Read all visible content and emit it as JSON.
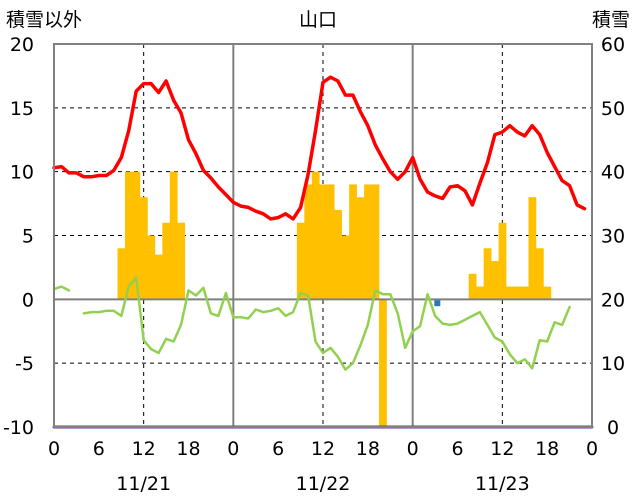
{
  "chart_data": {
    "type": "line",
    "title": "山口",
    "y_left_label": "積雪以外",
    "y_right_label": "積雪",
    "ylim_left": [
      -10,
      20
    ],
    "ylim_right": [
      0,
      60
    ],
    "y_left_ticks": [
      "20",
      "15",
      "10",
      "5",
      "0",
      "-5",
      "-10"
    ],
    "y_right_ticks": [
      "60",
      "50",
      "40",
      "30",
      "20",
      "10",
      "0"
    ],
    "x_hours_range": [
      0,
      72
    ],
    "x_tick_labels": [
      "0",
      "6",
      "12",
      "18",
      "0",
      "6",
      "12",
      "18",
      "0",
      "6",
      "12",
      "18",
      "0"
    ],
    "day_labels": [
      "11/21",
      "11/22",
      "11/23"
    ],
    "grid": true,
    "colors": {
      "temperature": "#ff0000",
      "snow_depth": "#ffc000",
      "other": "#92d050",
      "precip": "#2e75b6",
      "baseline": "#7030a0"
    },
    "series": [
      {
        "key": "temperature",
        "axis": "left",
        "kind": "line",
        "x": [
          0,
          1,
          2,
          3,
          4,
          5,
          6,
          7,
          8,
          9,
          10,
          11,
          12,
          13,
          14,
          15,
          16,
          17,
          18,
          19,
          20,
          21,
          22,
          23,
          24,
          25,
          26,
          27,
          28,
          29,
          30,
          31,
          32,
          33,
          34,
          35,
          36,
          37,
          38,
          39,
          40,
          41,
          42,
          43,
          44,
          45,
          46,
          47,
          48,
          49,
          50,
          51,
          52,
          53,
          54,
          55,
          56,
          57,
          58,
          59,
          60,
          61,
          62,
          63,
          64,
          65,
          66,
          67,
          68,
          69,
          70,
          71
        ],
        "values": [
          10.3,
          10.4,
          9.9,
          9.9,
          9.6,
          9.6,
          9.7,
          9.7,
          10.1,
          11.1,
          13.2,
          16.3,
          16.9,
          16.9,
          16.2,
          17.1,
          15.6,
          14.6,
          12.5,
          11.4,
          10.1,
          9.5,
          8.8,
          8.2,
          7.6,
          7.3,
          7.2,
          6.9,
          6.7,
          6.3,
          6.4,
          6.7,
          6.3,
          7.2,
          9.8,
          13.2,
          17.0,
          17.4,
          17.1,
          16.0,
          16.0,
          14.7,
          13.6,
          12.1,
          11.0,
          10.0,
          9.4,
          10.0,
          11.1,
          9.4,
          8.4,
          8.1,
          7.9,
          8.8,
          8.9,
          8.5,
          7.4,
          9.1,
          10.7,
          12.9,
          13.1,
          13.6,
          13.1,
          12.8,
          13.6,
          12.9,
          11.5,
          10.4,
          9.3,
          8.9,
          7.4,
          7.1
        ]
      },
      {
        "key": "snow_depth",
        "axis": "right",
        "kind": "bar",
        "x": [
          9,
          10,
          11,
          12,
          13,
          14,
          15,
          16,
          17,
          33,
          34,
          35,
          36,
          37,
          38,
          39,
          40,
          41,
          42,
          43,
          44,
          56,
          57,
          58,
          59,
          60,
          61,
          62,
          63,
          64,
          65,
          66
        ],
        "values": [
          28,
          40,
          40,
          36,
          30,
          27,
          32,
          40,
          32,
          32,
          38,
          40,
          38,
          38,
          34,
          30,
          38,
          36,
          38,
          38,
          0,
          24,
          22,
          28,
          26,
          32,
          22,
          22,
          22,
          36,
          28,
          22
        ]
      },
      {
        "key": "other",
        "axis": "left",
        "kind": "line",
        "segments": [
          {
            "x": [
              0,
              1,
              2
            ],
            "values": [
              0.8,
              1.0,
              0.7
            ]
          },
          {
            "x": [
              4,
              5,
              6,
              7,
              8,
              9,
              10,
              11,
              12,
              13,
              14,
              15,
              16,
              17,
              18,
              19,
              20,
              21,
              22,
              23,
              24,
              25,
              26,
              27,
              28,
              29,
              30,
              31,
              32,
              33,
              34,
              35,
              36,
              37,
              38,
              39,
              40,
              41,
              42,
              43,
              44,
              45,
              46,
              47,
              48,
              49,
              50,
              51,
              52,
              53,
              54,
              55,
              56,
              57,
              58,
              59,
              60,
              61,
              62,
              63,
              64,
              65,
              66,
              67,
              68,
              69,
              70
            ],
            "values": [
              -1.1,
              -1.0,
              -1.0,
              -0.9,
              -0.9,
              -1.3,
              1.0,
              1.7,
              -3.2,
              -3.9,
              -4.2,
              -3.1,
              -3.3,
              -2.0,
              0.7,
              0.3,
              0.9,
              -1.1,
              -1.3,
              0.5,
              -1.4,
              -1.4,
              -1.5,
              -0.8,
              -1.0,
              -0.9,
              -0.7,
              -1.3,
              -1.0,
              0.5,
              0.3,
              -3.3,
              -4.2,
              -3.8,
              -4.5,
              -5.5,
              -5.0,
              -3.6,
              -2.0,
              0.7,
              0.4,
              0.4,
              -1.1,
              -3.8,
              -2.5,
              -2.1,
              0.4,
              -1.3,
              -1.9,
              -2.0,
              -1.9,
              -1.6,
              -1.3,
              -1.0,
              -2.0,
              -3.0,
              -3.3,
              -4.3,
              -5.0,
              -4.7,
              -5.4,
              -3.2,
              -3.3,
              -1.8,
              -2.0,
              -0.6,
              null
            ]
          }
        ]
      },
      {
        "key": "precip",
        "axis": "left",
        "kind": "marker",
        "x": [
          51.3
        ],
        "values": [
          -0.3
        ]
      },
      {
        "key": "baseline",
        "axis": "left",
        "kind": "line",
        "x": [
          0,
          72
        ],
        "values": [
          -10,
          -10
        ]
      }
    ]
  }
}
